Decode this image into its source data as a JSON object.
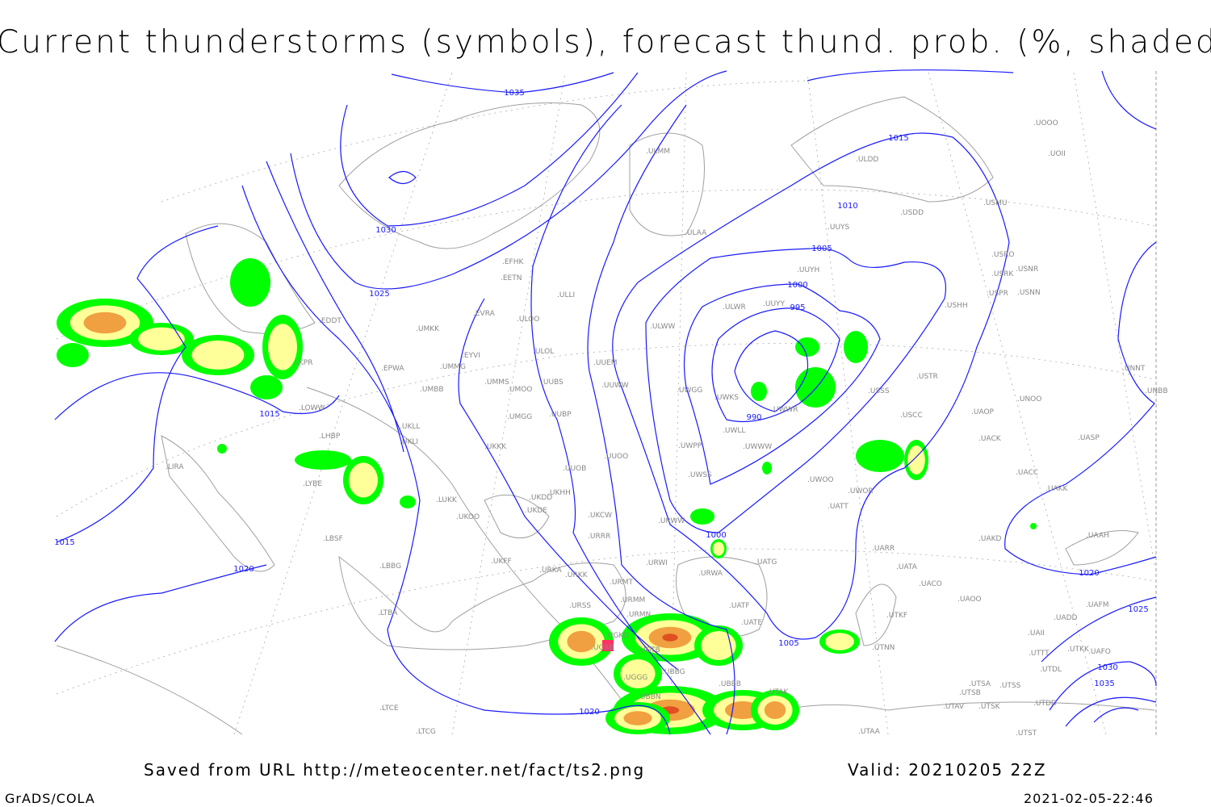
{
  "title": "Current thunderstorms (symbols), forecast thund. prob. (%, shaded)",
  "footer": {
    "source": "Saved from URL http://meteocenter.net/fact/ts2.png",
    "valid": "Valid: 20210205 22Z",
    "software": "GrADS/COLA",
    "timestamp": "2021-02-05-22:46"
  },
  "colors": {
    "isobars": "#1a1aff",
    "coastlines": "#a0a0a0",
    "prob_low": "#00ff00",
    "prob_mid": "#ffff99",
    "prob_high": "#f0a040",
    "prob_max": "#e05020",
    "thunderstorm_symbol": "#ff3366"
  },
  "isobar_labels": [
    "1035",
    "1030",
    "1025",
    "1015",
    "1015",
    "1020",
    "1020",
    "1010",
    "1005",
    "1000",
    "995",
    "990",
    "1000",
    "1005",
    "1015",
    "1020",
    "1025",
    "1030",
    "1035"
  ],
  "stations": [
    "ULMM",
    "ULDD",
    "USDD",
    "UUYS",
    "USMU",
    "UUYH",
    "USRO",
    "USRK",
    "USNR",
    "USPR",
    "USNN",
    "USHH",
    "EFHK",
    "EETN",
    "ULAA",
    "ULLI",
    "EVRA",
    "ULOO",
    "UMKK",
    "EYVI",
    "ULOL",
    "UUEM",
    "ULWW",
    "ULWR",
    "UUYY",
    "UMMG",
    "EPWA",
    "UMMS",
    "UMOO",
    "UUBS",
    "UMBB",
    "UUWW",
    "UWGG",
    "UWKS",
    "USSS",
    "USTR",
    "UMGG",
    "UUBP",
    "UWWR",
    "USCC",
    "UWLL",
    "UWWW",
    "UWPP",
    "EDDT",
    "LKPR",
    "LOWW",
    "LHBP",
    "UKLL",
    "UKLI",
    "UKKK",
    "UUOO",
    "UUOB",
    "UWSS",
    "UKHH",
    "UKDD",
    "UKDE",
    "UKOO",
    "LUKK",
    "UKCW",
    "URWW",
    "URRR",
    "UWOO",
    "UWOR",
    "UATT",
    "UAKD",
    "UARR",
    "URWI",
    "UATG",
    "URWA",
    "UATA",
    "URMT",
    "URMM",
    "URMN",
    "URKK",
    "UKFF",
    "URKA",
    "UATE",
    "UATF",
    "URSS",
    "UGSB",
    "UGKO",
    "UGTB",
    "UBBG",
    "UGGG",
    "UBBN",
    "UBBB",
    "UTAK",
    "UTNN",
    "LIRA",
    "LYBE",
    "LBSF",
    "LBBG",
    "LTBA",
    "LTCE",
    "UTSA",
    "UTSS",
    "UTSB",
    "UTAV",
    "UTSK",
    "UTDD",
    "UTAA",
    "UTST",
    "UAII",
    "UTTT",
    "UTDL",
    "UTKK",
    "UAFO",
    "UAFM",
    "UADD",
    "UAAH",
    "UACC",
    "UAKK",
    "UASP",
    "UACK",
    "UAOP",
    "UNNT",
    "UNBB",
    "UOII",
    "UOOO",
    "UNOO",
    "UAOO",
    "UACO",
    "UTKF",
    "LTCG"
  ]
}
